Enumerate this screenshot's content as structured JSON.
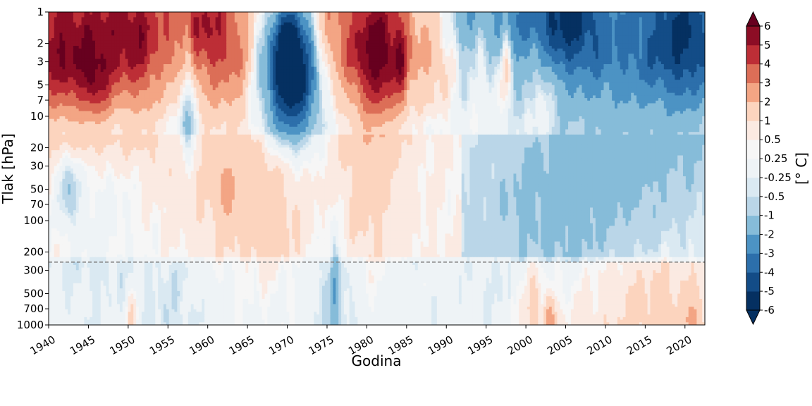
{
  "chart_data": {
    "type": "heatmap",
    "xlabel": "Godina",
    "ylabel": "Tlak [hPa]",
    "xlim": [
      1940,
      2022.5
    ],
    "ylim": [
      1000,
      1
    ],
    "y_scale": "log",
    "x_ticks": [
      1940,
      1945,
      1950,
      1955,
      1960,
      1965,
      1970,
      1975,
      1980,
      1985,
      1990,
      1995,
      2000,
      2005,
      2010,
      2015,
      2020
    ],
    "y_ticks": [
      1,
      2,
      3,
      5,
      7,
      10,
      20,
      30,
      50,
      70,
      100,
      200,
      300,
      500,
      700,
      1000
    ],
    "reference_line": {
      "pressure_hPa": 250,
      "style": "dashed",
      "color": "#808080"
    },
    "colorbar": {
      "label": "[° C]",
      "extend": "both",
      "bounds": [
        -6,
        -5,
        -4,
        -3,
        -2,
        -1,
        -0.5,
        -0.25,
        0.25,
        0.5,
        1,
        2,
        3,
        4,
        5,
        6
      ],
      "tick_labels": [
        "-6",
        "-5",
        "-4",
        "-3",
        "-2",
        "-1",
        "-0.5",
        "-0.25",
        "0.25",
        "0.5",
        "1",
        "2",
        "3",
        "4",
        "5",
        "6"
      ],
      "colors": [
        "#053061",
        "#134c87",
        "#2c6fab",
        "#4c93c4",
        "#86bcd9",
        "#bad6e8",
        "#dae9f2",
        "#eef3f6",
        "#f6f6f6",
        "#fbeae2",
        "#fcd4be",
        "#f3a584",
        "#dc6e57",
        "#bd2e36",
        "#8c0d25"
      ],
      "under_color": "#053061",
      "over_color": "#67001f"
    },
    "background_value": 0.1,
    "anomalies": [
      {
        "x": 1945,
        "p": 3,
        "sx": 5,
        "sp": 0.55,
        "v": 3.6
      },
      {
        "x": 1941,
        "p": 2,
        "sx": 2.5,
        "sp": 0.45,
        "v": 1.6
      },
      {
        "x": 1946,
        "p": 4.5,
        "sx": 1.0,
        "sp": 0.22,
        "v": 1.6
      },
      {
        "x": 1951,
        "p": 1.3,
        "sx": 3,
        "sp": 0.3,
        "v": 2.2
      },
      {
        "x": 1959,
        "p": 1.2,
        "sx": 2.5,
        "sp": 0.28,
        "v": 2.5
      },
      {
        "x": 1962,
        "p": 2.5,
        "sx": 2.5,
        "sp": 0.5,
        "v": 1.6
      },
      {
        "x": 1957.5,
        "p": 3,
        "sx": 0.5,
        "sp": 0.3,
        "v": -2.0
      },
      {
        "x": 1957.5,
        "p": 12,
        "sx": 0.8,
        "sp": 0.25,
        "v": -1.8
      },
      {
        "x": 1952,
        "p": 4.5,
        "sx": 1.2,
        "sp": 0.4,
        "v": 0.9
      },
      {
        "x": 1970.3,
        "p": 3,
        "sx": 2.2,
        "sp": 0.45,
        "v": -9.5
      },
      {
        "x": 1966,
        "p": 3,
        "sx": 1.0,
        "sp": 0.4,
        "v": -0.9
      },
      {
        "x": 1973.5,
        "p": 3,
        "sx": 1.5,
        "sp": 0.4,
        "v": -0.6
      },
      {
        "x": 1981.5,
        "p": 2.6,
        "sx": 2.3,
        "sp": 0.45,
        "v": 4.8
      },
      {
        "x": 1984.3,
        "p": 3,
        "sx": 0.5,
        "sp": 0.3,
        "v": 2.0
      },
      {
        "x": 1976,
        "p": 1.3,
        "sx": 3,
        "sp": 0.3,
        "v": 1.3
      },
      {
        "x": 1989,
        "p": 2.5,
        "sx": 1.8,
        "sp": 0.4,
        "v": 1.3
      },
      {
        "x": 1995,
        "p": 3,
        "sx": 1.5,
        "sp": 0.35,
        "v": 1.0
      },
      {
        "x": 1997.5,
        "p": 3,
        "sx": 0.5,
        "sp": 0.3,
        "v": 2.0
      },
      {
        "x": 1999,
        "p": 1.1,
        "sx": 6,
        "sp": 0.25,
        "v": -1.6
      },
      {
        "x": 2005,
        "p": 1.3,
        "sx": 3,
        "sp": 0.32,
        "v": -2.6
      },
      {
        "x": 2012,
        "p": 1.8,
        "sx": 6,
        "sp": 0.6,
        "v": -1.6
      },
      {
        "x": 2019,
        "p": 1.5,
        "sx": 3,
        "sp": 0.5,
        "v": -2.4
      },
      {
        "x": 2021,
        "p": 2.0,
        "sx": 2,
        "sp": 0.5,
        "v": -1.4
      },
      {
        "x": 2002,
        "p": 4.5,
        "sx": 1.0,
        "sp": 0.4,
        "v": 1.2
      },
      {
        "x": 1946,
        "p": 40,
        "sx": 4,
        "sp": 0.7,
        "v": -0.7
      },
      {
        "x": 1942.5,
        "p": 45,
        "sx": 0.9,
        "sp": 0.25,
        "v": -1.4
      },
      {
        "x": 1960,
        "p": 45,
        "sx": 5,
        "sp": 0.85,
        "v": 0.5
      },
      {
        "x": 1968,
        "p": 40,
        "sx": 3,
        "sp": 0.8,
        "v": 0.8
      },
      {
        "x": 1979.5,
        "p": 40,
        "sx": 3,
        "sp": 0.8,
        "v": 0.75
      },
      {
        "x": 1962.5,
        "p": 55,
        "sx": 0.8,
        "sp": 0.18,
        "v": 1.6
      },
      {
        "x": 2004,
        "p": 60,
        "sx": 6,
        "sp": 0.8,
        "v": -0.8
      },
      {
        "x": 2015,
        "p": 50,
        "sx": 6,
        "sp": 0.9,
        "v": -0.7
      },
      {
        "x": 1945,
        "p": 3,
        "sx": 0.4,
        "sp": 0.2,
        "v": 1.0
      },
      {
        "x": 2001,
        "p": 700,
        "sx": 0.6,
        "sp": 0.3,
        "v": 1.0
      },
      {
        "x": 2003,
        "p": 900,
        "sx": 0.5,
        "sp": 0.15,
        "v": 2.2
      },
      {
        "x": 2015.5,
        "p": 600,
        "sx": 6,
        "sp": 0.7,
        "v": 0.9
      },
      {
        "x": 1976,
        "p": 500,
        "sx": 1.8,
        "sp": 0.7,
        "v": -0.8
      },
      {
        "x": 1976,
        "p": 500,
        "sx": 0.3,
        "sp": 0.4,
        "v": -1.3
      },
      {
        "x": 1956,
        "p": 600,
        "sx": 3,
        "sp": 0.6,
        "v": -0.5
      },
      {
        "x": 1950.5,
        "p": 900,
        "sx": 0.5,
        "sp": 0.2,
        "v": 1.3
      },
      {
        "x": 2021,
        "p": 900,
        "sx": 0.6,
        "sp": 0.15,
        "v": 1.5
      }
    ]
  }
}
